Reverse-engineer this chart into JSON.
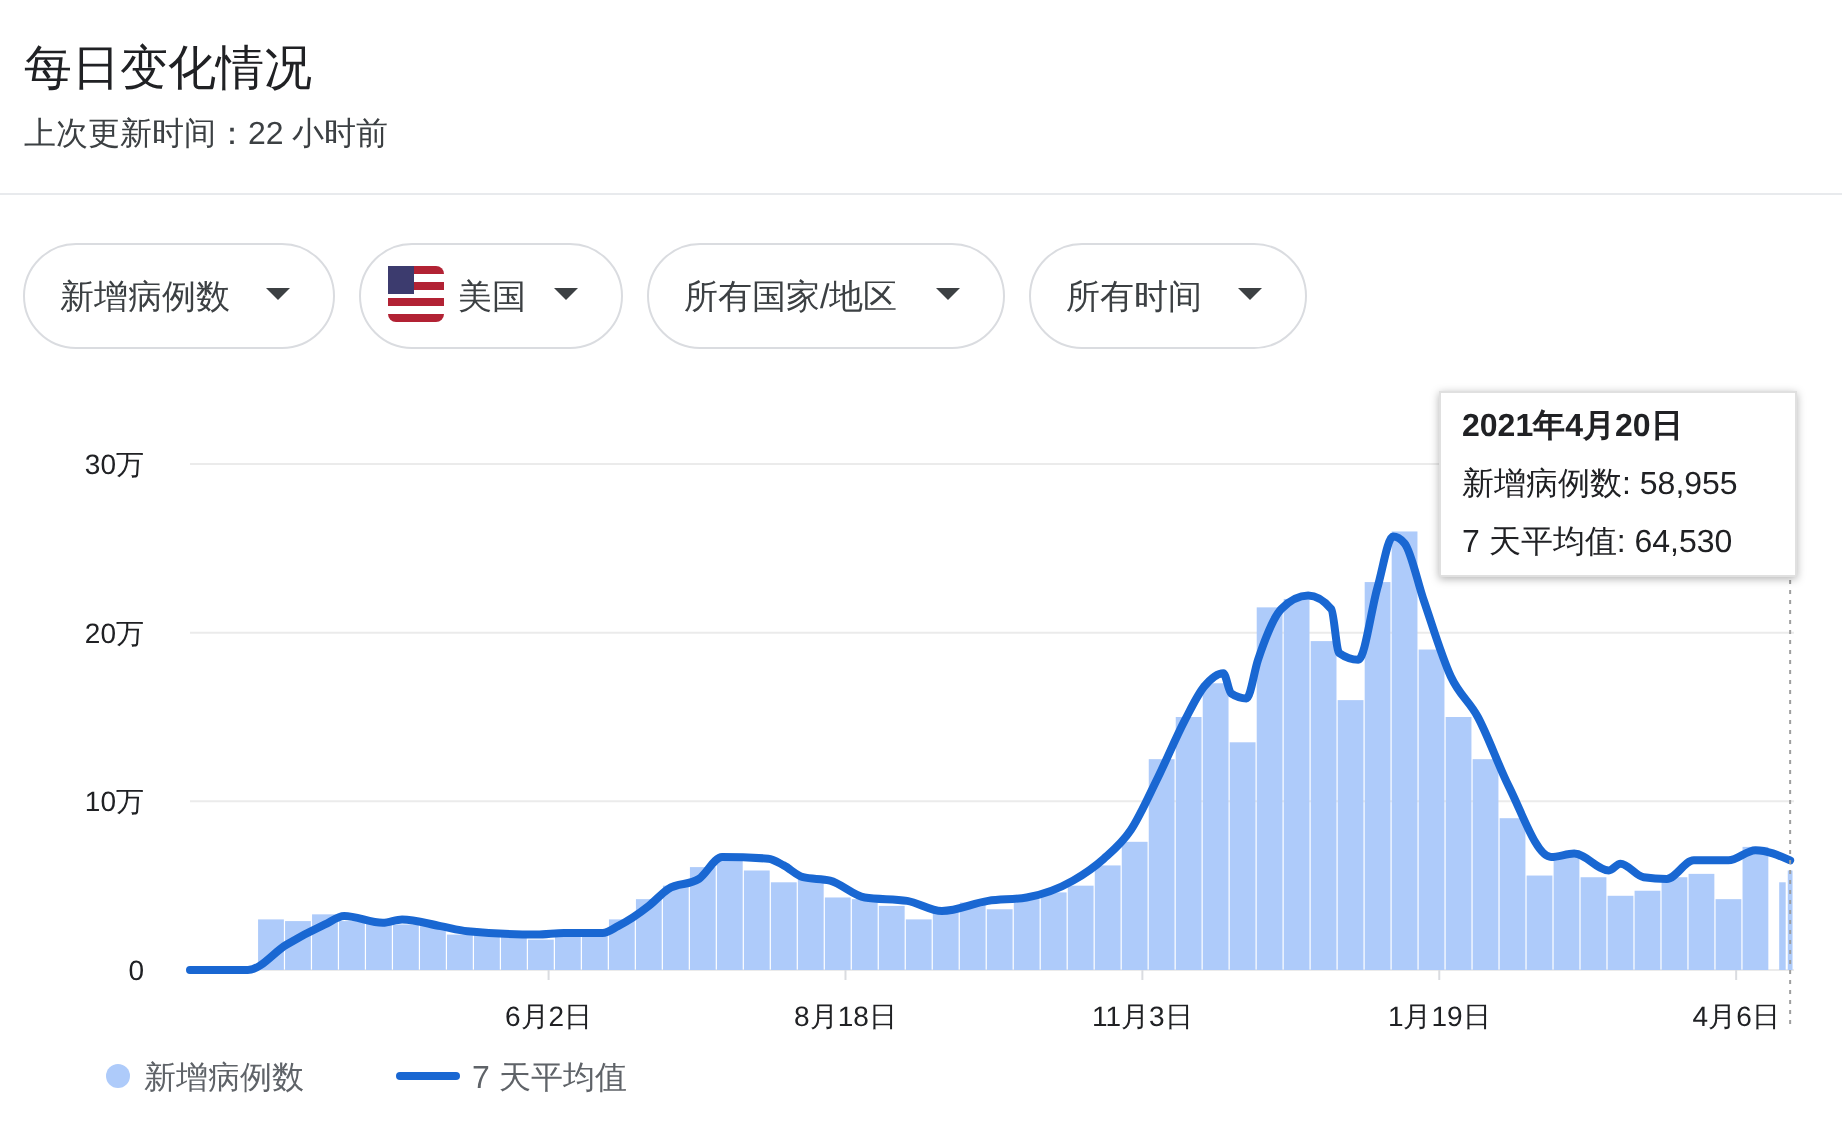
{
  "chart_data": {
    "type": "bar",
    "title": "每日变化情况",
    "subtitle": "上次更新时间：22 小时前",
    "annotations": [
      "新增病例数",
      "美国",
      "所有国家/地区",
      "所有时间",
      "2021年4月20日",
      "新增病例数: 58,955",
      "7 天平均值: 64,530"
    ],
    "xlim": [
      "2020-03-01",
      "2021-04-21"
    ],
    "xticks": [
      {
        "value": "2020-06-02",
        "label": "6月2日"
      },
      {
        "value": "2020-08-18",
        "label": "8月18日"
      },
      {
        "value": "2020-11-03",
        "label": "11月3日"
      },
      {
        "value": "2021-01-19",
        "label": "1月19日"
      },
      {
        "value": "2021-04-06",
        "label": "4月6日"
      }
    ],
    "ylim": [
      0,
      30
    ],
    "yticks": [
      0,
      {
        "value": 10,
        "label": "10万"
      },
      {
        "value": 20,
        "label": "20万"
      },
      {
        "value": 30,
        "label": "30万"
      }
    ],
    "grid": "y",
    "legend": "bottom left",
    "ref_lines": [
      {
        "axis": "x",
        "value": "2021-04-20",
        "color": "#9e9e9e",
        "line_style": "dotted"
      }
    ],
    "series": [
      {
        "name": "新增病例数",
        "color": "#aecbfa",
        "x": [
          "2020-03-01",
          "2020-03-08",
          "2020-03-15",
          "2020-03-22",
          "2020-03-29",
          "2020-04-05",
          "2020-04-12",
          "2020-04-19",
          "2020-04-26",
          "2020-05-03",
          "2020-05-10",
          "2020-05-17",
          "2020-05-24",
          "2020-05-31",
          "2020-06-07",
          "2020-06-14",
          "2020-06-21",
          "2020-06-28",
          "2020-07-05",
          "2020-07-12",
          "2020-07-19",
          "2020-07-26",
          "2020-08-02",
          "2020-08-09",
          "2020-08-16",
          "2020-08-23",
          "2020-08-30",
          "2020-09-06",
          "2020-09-13",
          "2020-09-20",
          "2020-09-27",
          "2020-10-04",
          "2020-10-11",
          "2020-10-18",
          "2020-10-25",
          "2020-11-01",
          "2020-11-08",
          "2020-11-15",
          "2020-11-22",
          "2020-11-29",
          "2020-12-06",
          "2020-12-13",
          "2020-12-20",
          "2020-12-27",
          "2021-01-03",
          "2021-01-10",
          "2021-01-17",
          "2021-01-24",
          "2021-01-31",
          "2021-02-07",
          "2021-02-14",
          "2021-02-21",
          "2021-02-28",
          "2021-03-07",
          "2021-03-14",
          "2021-03-21",
          "2021-03-28",
          "2021-04-04",
          "2021-04-11",
          "2021-04-18",
          "2021-04-20"
        ],
        "values": [
          0,
          0,
          null,
          3,
          2.9,
          3.3,
          2.9,
          3,
          2.7,
          2.6,
          2.1,
          2.1,
          2,
          1.8,
          2,
          2.1,
          3,
          4.2,
          5,
          6.1,
          6.5,
          5.9,
          5.2,
          5.5,
          4.3,
          4.2,
          3.8,
          3,
          3.7,
          4,
          3.6,
          4.2,
          4.6,
          5,
          6.2,
          7.6,
          12.5,
          15,
          17,
          13.5,
          21.5,
          22,
          19.5,
          16,
          23,
          26,
          19,
          15,
          12.5,
          9,
          5.6,
          6.7,
          5.5,
          4.4,
          4.7,
          5.5,
          5.7,
          4.2,
          7.3,
          5.2,
          5.9
        ]
      },
      {
        "name": "7 天平均值",
        "type": "line",
        "color": "#1967d2",
        "marker": "none",
        "line_style": "solid",
        "x": [
          "2020-03-01",
          "2020-03-16",
          "2020-03-26",
          "2020-04-05",
          "2020-04-10",
          "2020-04-20",
          "2020-04-25",
          "2020-05-05",
          "2020-05-12",
          "2020-05-30",
          "2020-06-06",
          "2020-06-16",
          "2020-06-20",
          "2020-06-28",
          "2020-07-03",
          "2020-07-11",
          "2020-07-17",
          "2020-07-29",
          "2020-08-02",
          "2020-08-07",
          "2020-08-14",
          "2020-08-23",
          "2020-09-03",
          "2020-09-12",
          "2020-09-24",
          "2020-10-04",
          "2020-10-16",
          "2020-10-24",
          "2020-10-31",
          "2020-11-07",
          "2020-11-14",
          "2020-11-19",
          "2020-11-24",
          "2020-11-26",
          "2020-11-30",
          "2020-12-03",
          "2020-12-09",
          "2020-12-16",
          "2020-12-22",
          "2020-12-24",
          "2020-12-29",
          "2021-01-03",
          "2021-01-07",
          "2021-01-10",
          "2021-01-15",
          "2021-01-22",
          "2021-01-29",
          "2021-02-06",
          "2021-02-17",
          "2021-02-23",
          "2021-03-04",
          "2021-03-07",
          "2021-03-13",
          "2021-03-19",
          "2021-03-26",
          "2021-04-04",
          "2021-04-11",
          "2021-04-20"
        ],
        "values": [
          0,
          0,
          1.5,
          2.7,
          3.2,
          2.8,
          3,
          2.6,
          2.3,
          2.1,
          2.2,
          2.2,
          2.6,
          3.8,
          4.8,
          5.4,
          6.7,
          6.6,
          6.2,
          5.5,
          5.3,
          4.3,
          4.1,
          3.5,
          4.1,
          4.3,
          5.3,
          6.6,
          8.3,
          11.4,
          14.8,
          16.8,
          17.6,
          16.4,
          16.1,
          18.4,
          21.4,
          22.2,
          21.4,
          18.8,
          18.4,
          22.7,
          25.7,
          25.3,
          21.9,
          17.4,
          15,
          10.9,
          6.7,
          6.9,
          5.9,
          6.3,
          5.5,
          5.4,
          6.5,
          6.5,
          7.1,
          6.5
        ]
      }
    ]
  }
}
